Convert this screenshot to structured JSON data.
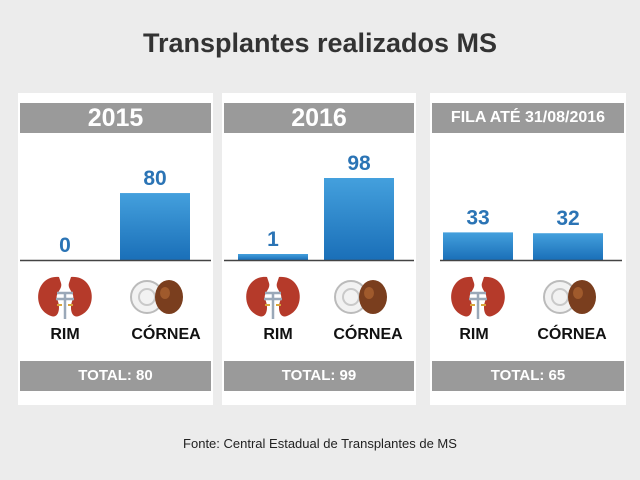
{
  "title": "Transplantes realizados MS",
  "source": "Fonte: Central Estadual de Transplantes de MS",
  "colors": {
    "bar_top": "#44a0dd",
    "bar_bottom": "#1a6fb8",
    "value_text": "#2b74b5",
    "header_bg": "#9a9a9a"
  },
  "chart_data": [
    {
      "type": "bar",
      "title": "2015",
      "categories": [
        "RIM",
        "CÓRNEA"
      ],
      "values": [
        0,
        80
      ],
      "total": "TOTAL: 80",
      "ylim": [
        0,
        100
      ]
    },
    {
      "type": "bar",
      "title": "2016",
      "categories": [
        "RIM",
        "CÓRNEA"
      ],
      "values": [
        1,
        98
      ],
      "total": "TOTAL: 99",
      "ylim": [
        0,
        100
      ]
    },
    {
      "type": "bar",
      "title": "FILA ATÉ 31/08/2016",
      "categories": [
        "RIM",
        "CÓRNEA"
      ],
      "values": [
        33,
        32
      ],
      "total": "TOTAL: 65",
      "ylim": [
        0,
        100
      ]
    }
  ]
}
